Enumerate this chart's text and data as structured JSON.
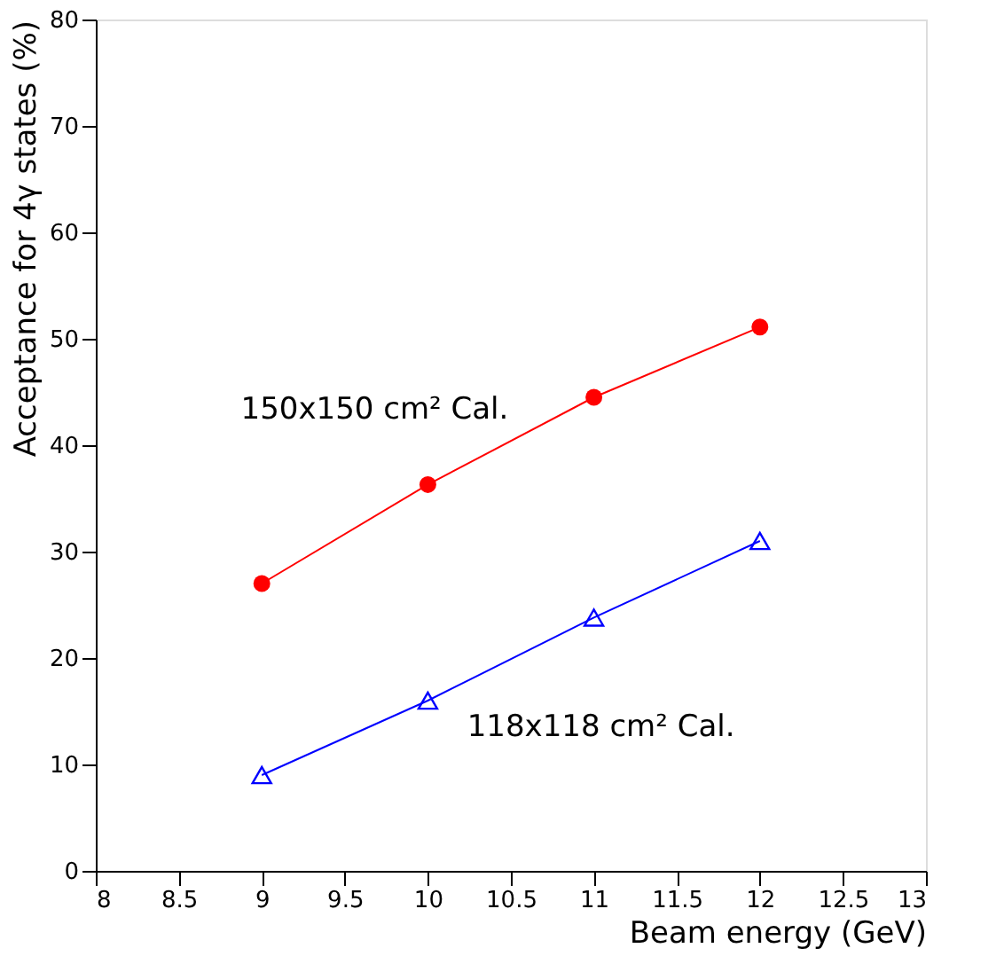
{
  "chart_data": {
    "type": "line",
    "xlabel": "Beam energy (GeV)",
    "ylabel": "Acceptance for 4γ states (%)",
    "x": [
      9,
      10,
      11,
      12
    ],
    "series": [
      {
        "name": "150x150 cm² Cal.",
        "color": "#ff0000",
        "marker": "circle",
        "values": [
          27,
          36.3,
          44.5,
          51.1
        ]
      },
      {
        "name": "118x118 cm² Cal.",
        "color": "#0000ff",
        "marker": "triangle",
        "values": [
          9,
          16,
          23.8,
          31
        ]
      }
    ],
    "xlim": [
      8,
      13
    ],
    "xticks": [
      8,
      8.5,
      9,
      9.5,
      10,
      10.5,
      11,
      11.5,
      12,
      12.5,
      13
    ],
    "ylim": [
      0,
      80
    ],
    "yticks": [
      0,
      10,
      20,
      30,
      40,
      50,
      60,
      70,
      80
    ],
    "grid": false,
    "line_style": "solid"
  }
}
